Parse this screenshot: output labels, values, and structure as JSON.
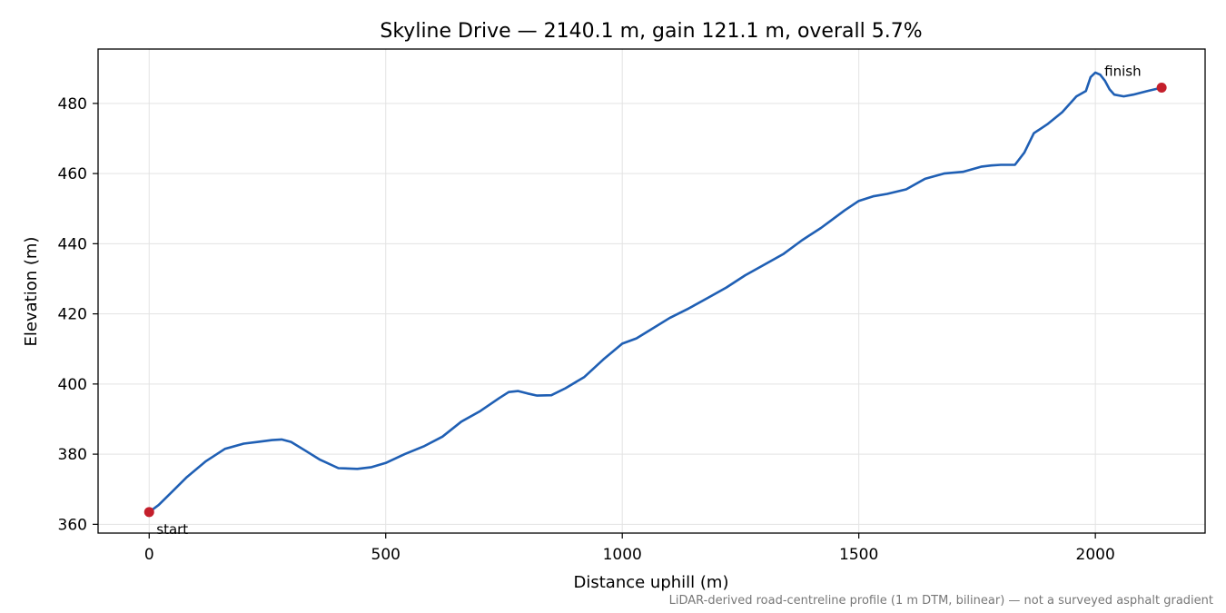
{
  "chart_data": {
    "type": "line",
    "title": "Skyline Drive — 2140.1 m, gain 121.1 m, overall 5.7%",
    "xlabel": "Distance uphill (m)",
    "ylabel": "Elevation (m)",
    "xlim": [
      -108,
      2232
    ],
    "ylim": [
      357.5,
      495.5
    ],
    "xticks": [
      0,
      500,
      1000,
      1500,
      2000
    ],
    "yticks": [
      360,
      380,
      400,
      420,
      440,
      460,
      480
    ],
    "grid": true,
    "footnote": "LiDAR-derived road-centreline profile (1 m DTM, bilinear) — not a surveyed asphalt gradient",
    "series": [
      {
        "color": "#1f5fb4",
        "x": [
          0,
          20,
          50,
          80,
          120,
          160,
          200,
          230,
          260,
          280,
          300,
          330,
          360,
          400,
          440,
          470,
          500,
          540,
          580,
          620,
          660,
          700,
          740,
          760,
          780,
          800,
          820,
          850,
          880,
          920,
          960,
          1000,
          1030,
          1060,
          1100,
          1140,
          1180,
          1220,
          1260,
          1300,
          1340,
          1380,
          1420,
          1440,
          1470,
          1500,
          1530,
          1560,
          1600,
          1640,
          1680,
          1720,
          1760,
          1780,
          1800,
          1830,
          1850,
          1870,
          1900,
          1930,
          1960,
          1980,
          1990,
          2000,
          2010,
          2020,
          2030,
          2040,
          2060,
          2080,
          2110,
          2140.1
        ],
        "y": [
          363.5,
          365.5,
          369.5,
          373.5,
          378,
          381.5,
          383,
          383.5,
          384,
          384.2,
          383.5,
          381,
          378.5,
          376,
          375.8,
          376.3,
          377.5,
          380,
          382.2,
          385,
          389.3,
          392.3,
          396,
          397.7,
          398,
          397.3,
          396.7,
          396.8,
          398.8,
          402,
          407,
          411.5,
          413,
          415.5,
          418.8,
          421.5,
          424.5,
          427.5,
          431,
          434,
          437,
          441,
          444.5,
          446.5,
          449.5,
          452.2,
          453.5,
          454.2,
          455.5,
          458.5,
          460,
          460.5,
          462,
          462.3,
          462.5,
          462.5,
          466,
          471.5,
          474.2,
          477.5,
          482,
          483.5,
          487.5,
          488.8,
          488.2,
          486.5,
          484,
          482.5,
          482,
          482.5,
          483.5,
          484.5
        ]
      }
    ],
    "markers": [
      {
        "x": 0,
        "y": 363.5,
        "color": "#c41f2b",
        "label": "start"
      },
      {
        "x": 2140.1,
        "y": 484.5,
        "color": "#c41f2b",
        "label": "finish"
      }
    ]
  }
}
